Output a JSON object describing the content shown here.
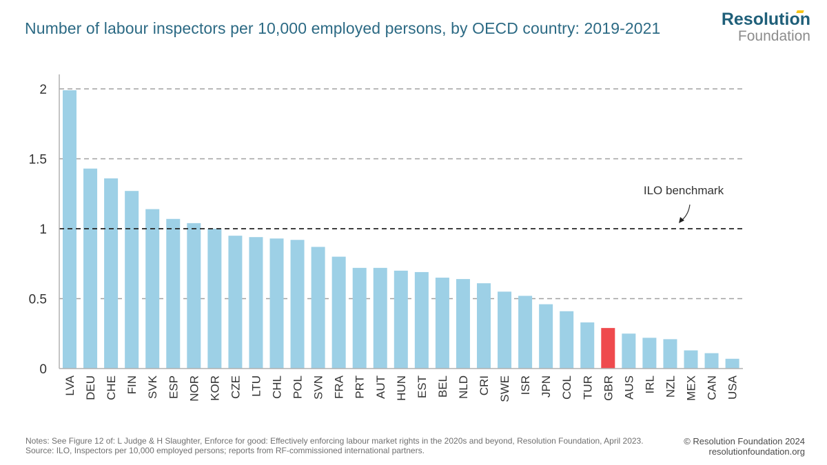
{
  "header": {
    "title": "Number of labour inspectors per 10,000 employed persons, by OECD country: 2019-2021",
    "logo_top": "Resolution",
    "logo_bottom": "Foundation"
  },
  "colors": {
    "bar": "#9dd0e6",
    "highlight": "#ef4a4d",
    "title": "#2c6a84",
    "grid": "#a0a0a0",
    "benchmark": "#222222"
  },
  "chart_data": {
    "type": "bar",
    "title": "Number of labour inspectors per 10,000 employed persons, by OECD country: 2019-2021",
    "xlabel": "",
    "ylabel": "",
    "ylim": [
      0,
      2
    ],
    "yticks": [
      0,
      0.5,
      1,
      1.5,
      2
    ],
    "ytick_labels": [
      "0",
      "0.5",
      "1",
      "1.5",
      "2"
    ],
    "grid": true,
    "categories": [
      "LVA",
      "DEU",
      "CHE",
      "FIN",
      "SVK",
      "ESP",
      "NOR",
      "KOR",
      "CZE",
      "LTU",
      "CHL",
      "POL",
      "SVN",
      "FRA",
      "PRT",
      "AUT",
      "HUN",
      "EST",
      "BEL",
      "NLD",
      "CRI",
      "SWE",
      "ISR",
      "JPN",
      "COL",
      "TUR",
      "GBR",
      "AUS",
      "IRL",
      "NZL",
      "MEX",
      "CAN",
      "USA"
    ],
    "values": [
      1.99,
      1.43,
      1.36,
      1.27,
      1.14,
      1.07,
      1.04,
      1.0,
      0.95,
      0.94,
      0.93,
      0.92,
      0.87,
      0.8,
      0.72,
      0.72,
      0.7,
      0.69,
      0.65,
      0.64,
      0.61,
      0.55,
      0.52,
      0.46,
      0.41,
      0.33,
      0.29,
      0.25,
      0.22,
      0.21,
      0.13,
      0.11,
      0.07
    ],
    "highlight_category": "GBR",
    "reference_line": {
      "value": 1,
      "label": "ILO benchmark"
    }
  },
  "footer": {
    "notes": "Notes: See Figure 12 of: L Judge & H Slaughter, Enforce for good: Effectively enforcing labour market rights in the 2020s and beyond, Resolution Foundation, April 2023.",
    "source": "Source: ILO, Inspectors per 10,000 employed persons; reports from RF-commissioned international partners.",
    "copyright": "© Resolution Foundation 2024",
    "website": "resolutionfoundation.org"
  }
}
